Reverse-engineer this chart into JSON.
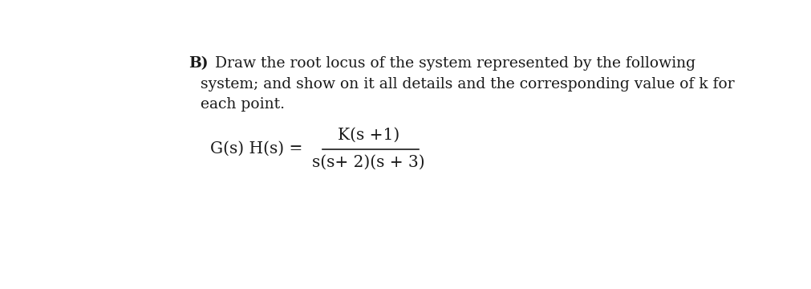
{
  "background_color": "#ffffff",
  "text_color": "#1a1a1a",
  "bold_label": "B)",
  "line1": "  Draw the root locus of the system represented by the following",
  "line2": "system; and show on it all details and the corresponding value of k for",
  "line3": "each point.",
  "lhs": "G(s) H(s) =",
  "numerator": "K(s +1)",
  "denominator": "s(s+ 2)(s + 3)",
  "font_size_text": 13.5,
  "font_size_eq": 14.5,
  "font_family": "DejaVu Serif"
}
